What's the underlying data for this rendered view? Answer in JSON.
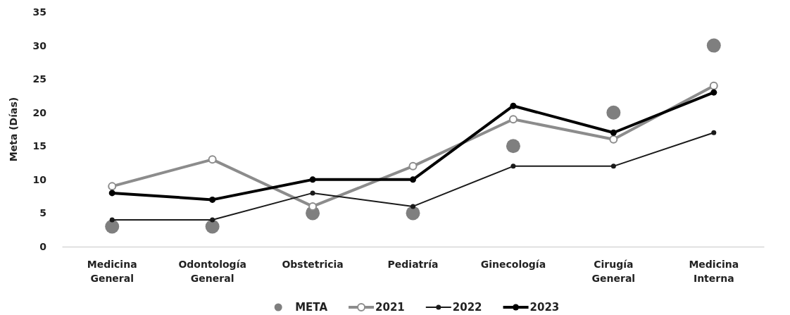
{
  "chart_data": {
    "type": "line",
    "ylabel": "Meta (Días)",
    "categories": [
      "Medicina General",
      "Odontología General",
      "Obstetricia",
      "Pediatría",
      "Ginecología",
      "Cirugía General",
      "Medicina Interna"
    ],
    "series": [
      {
        "name": "META",
        "type": "scatter",
        "marker": "circle",
        "color": "#7f7f7f",
        "values": [
          3,
          3,
          5,
          5,
          15,
          20,
          30
        ]
      },
      {
        "name": "2021",
        "marker": "circle",
        "color": "#8c8c8c",
        "values": [
          9,
          13,
          6,
          12,
          19,
          16,
          24
        ]
      },
      {
        "name": "2022",
        "marker": "circle",
        "color": "#1a1a1a",
        "values": [
          4,
          4,
          8,
          6,
          12,
          12,
          17
        ]
      },
      {
        "name": "2023",
        "marker": "circle",
        "color": "#000000",
        "values": [
          8,
          7,
          10,
          10,
          21,
          17,
          23
        ]
      }
    ],
    "ylim": [
      0,
      35
    ],
    "yticks": [
      0,
      5,
      10,
      15,
      20,
      25,
      30,
      35
    ],
    "grid": false,
    "legend": "bottom",
    "line_style": "solid"
  }
}
